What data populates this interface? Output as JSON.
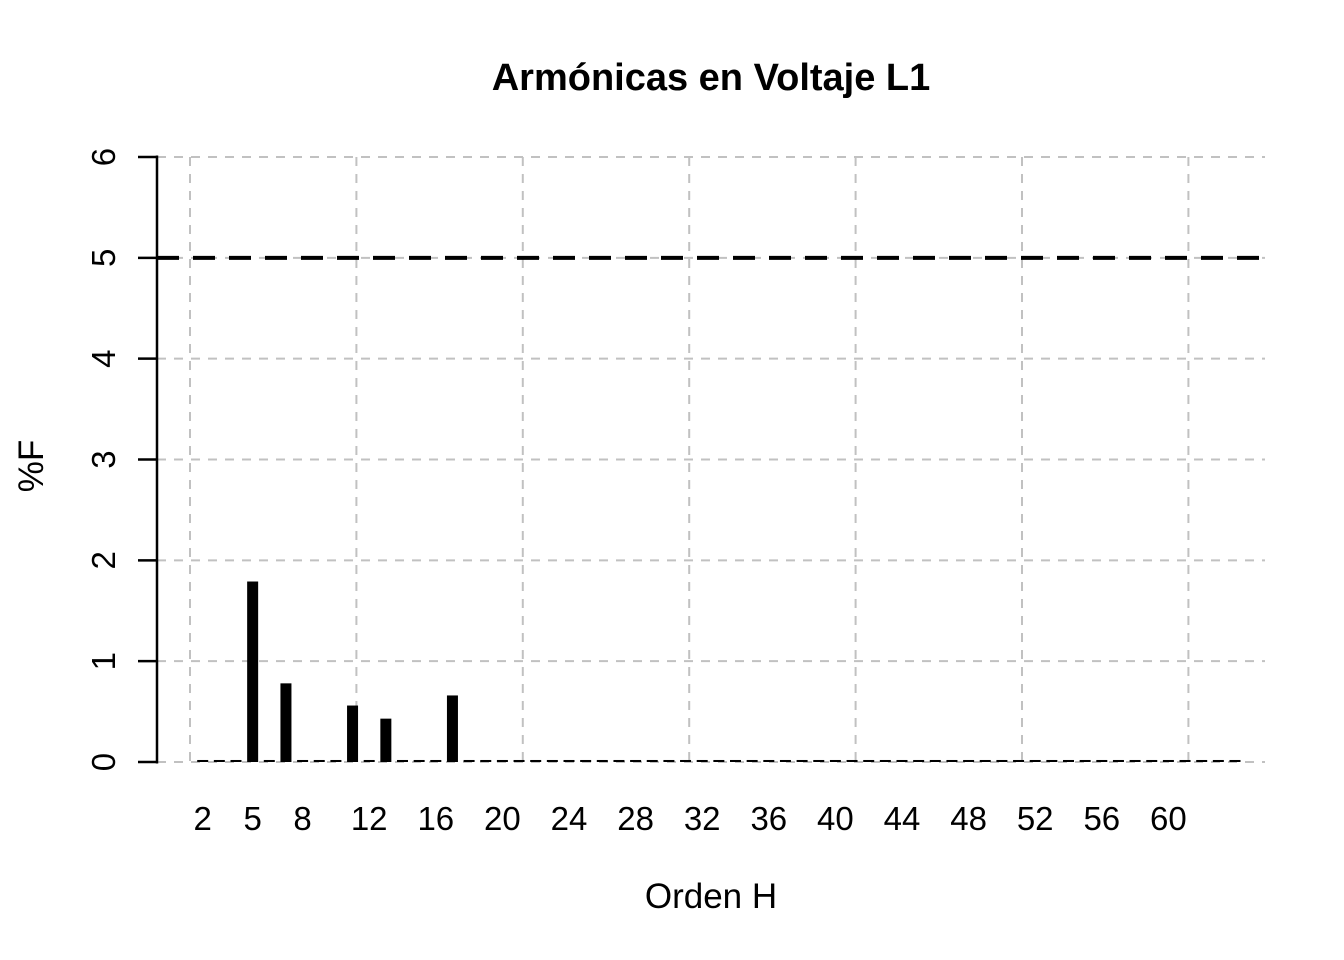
{
  "chart": {
    "title": "Armónicas en Voltaje L1",
    "xlabel": "Orden H",
    "ylabel": "%F"
  },
  "chart_data": {
    "type": "bar",
    "title": "Armónicas en Voltaje L1",
    "xlabel": "Orden H",
    "ylabel": "%F",
    "ylim": [
      0,
      6
    ],
    "y_ticks": [
      0,
      1,
      2,
      3,
      4,
      5,
      6
    ],
    "x_tick_labels": [
      2,
      5,
      8,
      12,
      16,
      20,
      24,
      28,
      32,
      36,
      40,
      44,
      48,
      52,
      56,
      60
    ],
    "orders_range": [
      2,
      64
    ],
    "prominent_bars": [
      {
        "order": 5,
        "value": 1.79
      },
      {
        "order": 7,
        "value": 0.78
      },
      {
        "order": 11,
        "value": 0.56
      },
      {
        "order": 13,
        "value": 0.43
      },
      {
        "order": 17,
        "value": 0.66
      }
    ],
    "baseline_bar_value": 0.02,
    "limit_line": {
      "y": 5,
      "style": "dashed"
    },
    "grid": true,
    "legend": false,
    "colors": {
      "bar": "#000000",
      "grid": "#c1c1c1",
      "axis": "#000000",
      "limit_line": "#000000",
      "text": "#000000",
      "background": "#ffffff"
    }
  }
}
